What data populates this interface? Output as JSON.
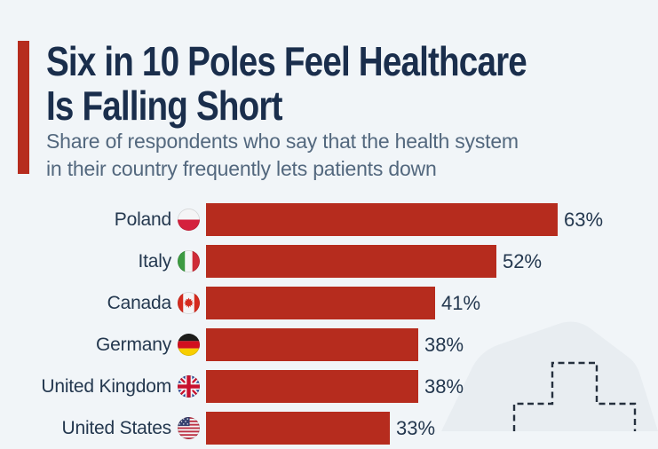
{
  "header": {
    "title_lines": [
      "Six in 10 Poles Feel Healthcare",
      "Is Falling Short"
    ],
    "subtitle_lines": [
      "Share of respondents who say that the health system",
      "in their country frequently lets patients down"
    ]
  },
  "chart_data": {
    "type": "bar",
    "orientation": "horizontal",
    "title": "Six in 10 Poles Feel Healthcare Is Falling Short",
    "subtitle": "Share of respondents who say that the health system in their country frequently lets patients down",
    "categories": [
      "Poland",
      "Italy",
      "Canada",
      "Germany",
      "United Kingdom",
      "United States"
    ],
    "values": [
      63,
      52,
      41,
      38,
      38,
      33
    ],
    "value_labels": [
      "63%",
      "52%",
      "41%",
      "38%",
      "38%",
      "33%"
    ],
    "unit": "%",
    "flags": [
      "pl",
      "it",
      "ca",
      "de",
      "gb",
      "us"
    ],
    "flag_icon_names": [
      "poland-flag-icon",
      "italy-flag-icon",
      "canada-flag-icon",
      "germany-flag-icon",
      "uk-flag-icon",
      "us-flag-icon"
    ],
    "bar_color": "#b62c1e",
    "data_labels": true,
    "axes_visible": false,
    "legend": false,
    "xlim": [
      0,
      100
    ]
  },
  "colors": {
    "background": "#f1f5f8",
    "accent_red": "#b62c1e",
    "title_navy": "#1a2e4c",
    "subtitle_slate": "#53687e",
    "label_navy": "#24384f",
    "blob_gray": "#e8edf1",
    "dash_navy": "#25303e"
  },
  "decor": {
    "shapes": [
      "background-blob",
      "medical-cross-dashed-icon"
    ]
  }
}
